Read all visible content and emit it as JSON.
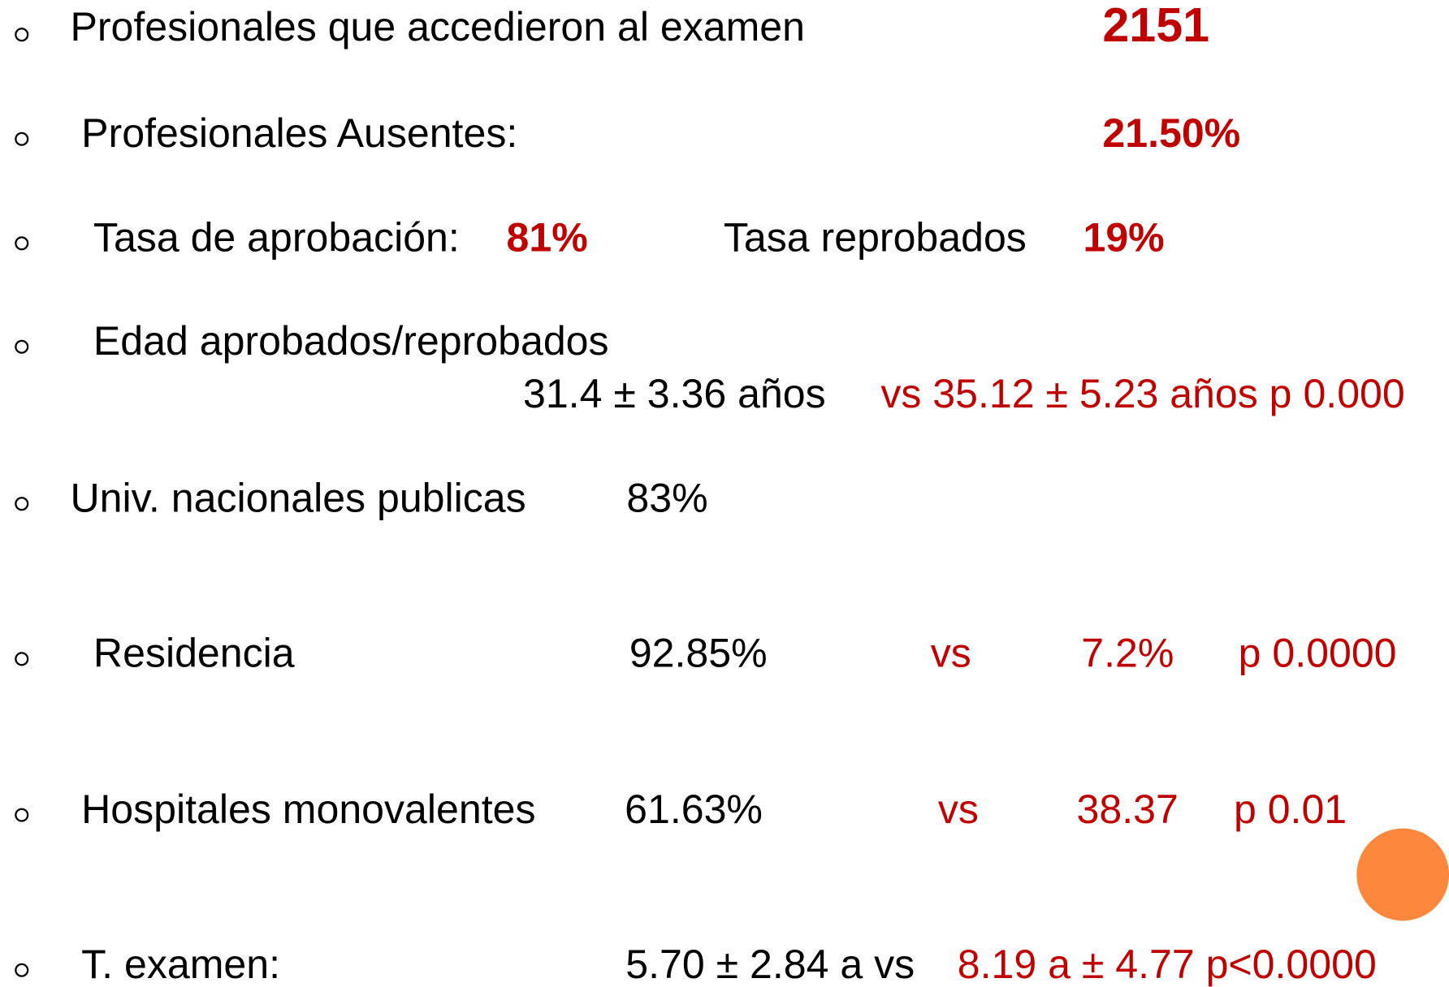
{
  "items": [
    {
      "label": "Profesionales que accedieron al examen",
      "value": "2151"
    },
    {
      "label": "Profesionales Ausentes:",
      "value": "21.50%"
    },
    {
      "label": "Tasa de aprobación:",
      "value": "81%",
      "label2": "Tasa reprobados",
      "value2": "19%"
    },
    {
      "label": "Edad aprobados/reprobados",
      "value": "31.4 ± 3.36 años",
      "compare": "vs 35.12 ± 5.23 años p 0.000"
    },
    {
      "label": "Univ. nacionales publicas",
      "value": "83%"
    },
    {
      "label": "Residencia",
      "value": "92.85%",
      "vs": "vs",
      "compare": "7.2%",
      "p": "p 0.0000"
    },
    {
      "label": "Hospitales monovalentes",
      "value": "61.63%",
      "vs": "vs",
      "compare": "38.37",
      "p": "p 0.01"
    },
    {
      "label": "T. examen:",
      "value": "5.70 ± 2.84 a vs",
      "compare": "8.19 a ± 4.77 p<0.0000"
    }
  ]
}
